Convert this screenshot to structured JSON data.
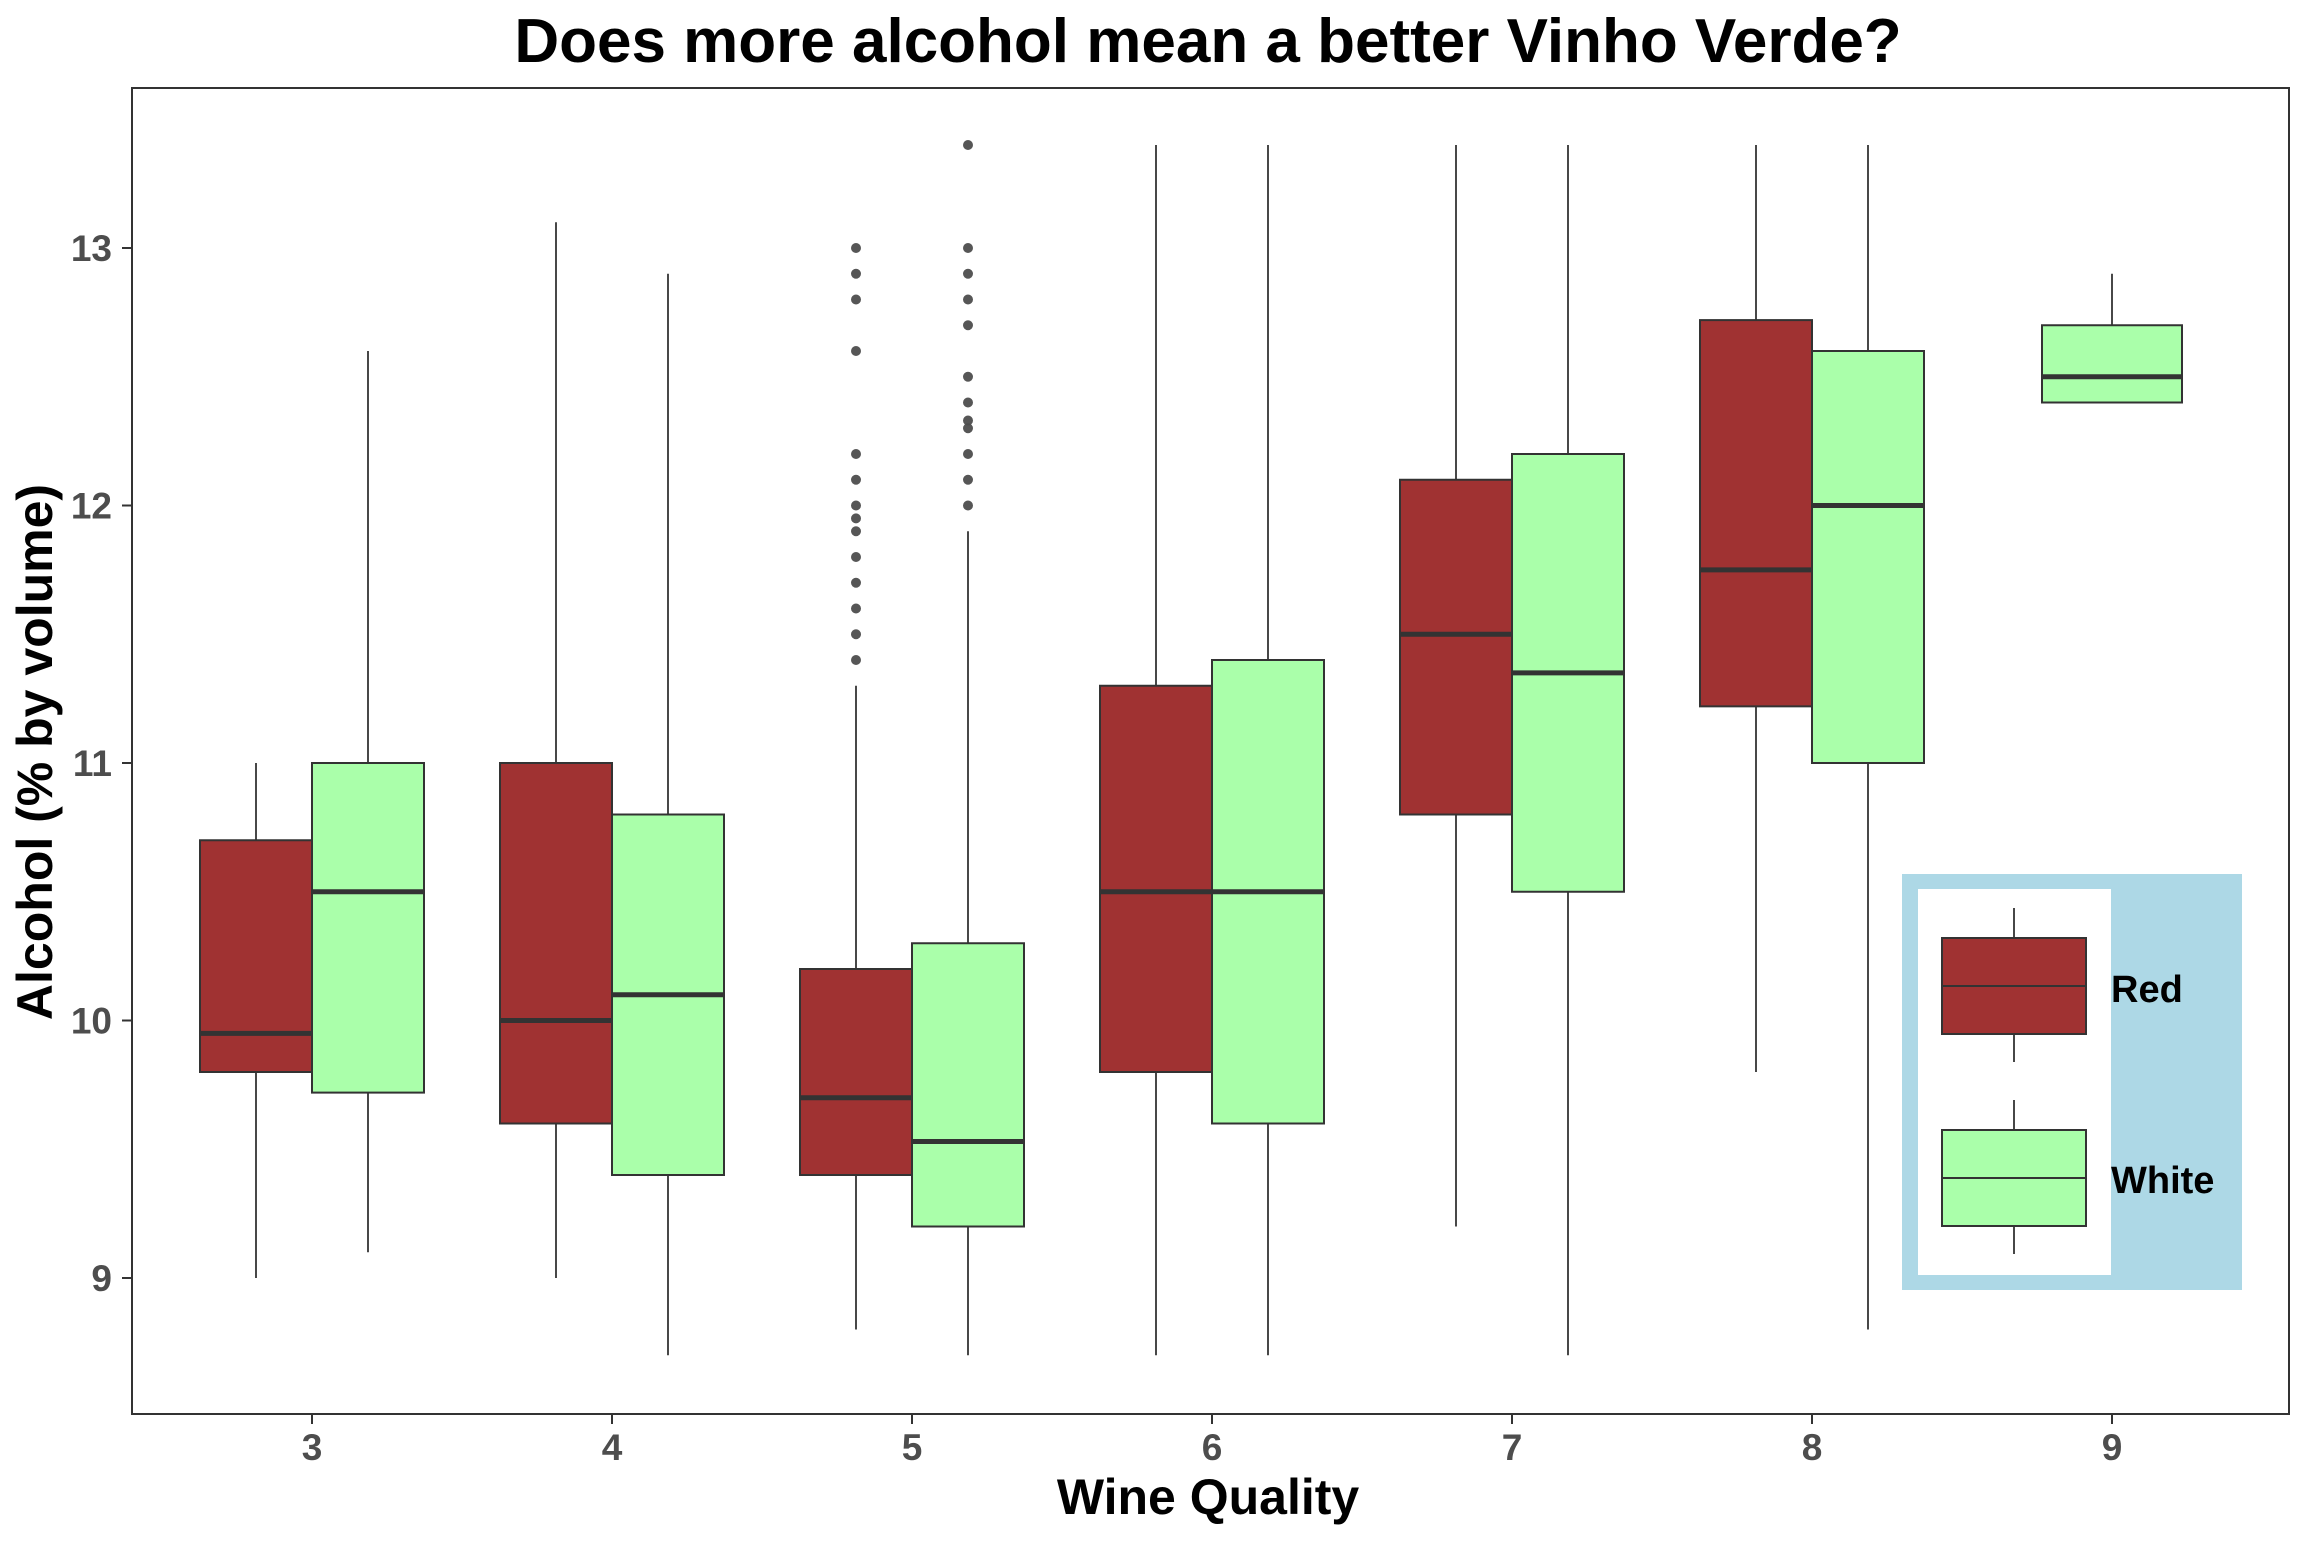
{
  "chart_data": {
    "type": "boxplot",
    "title": "Does more alcohol mean a better Vinho Verde?",
    "xlabel": "Wine Quality",
    "ylabel": "Alcohol (% by volume)",
    "categories": [
      "3",
      "4",
      "5",
      "6",
      "7",
      "8",
      "9"
    ],
    "y_ticks": [
      9,
      10,
      11,
      12,
      13
    ],
    "ylim": [
      8.47,
      13.6
    ],
    "grid": false,
    "legend_position": "bottom-right",
    "legend_background": "#add8e6",
    "series": [
      {
        "name": "Red",
        "color": "#a03232",
        "boxes": [
          {
            "category": "3",
            "min": 9.0,
            "q1": 9.8,
            "median": 9.95,
            "q3": 10.7,
            "max": 11.0,
            "outliers": []
          },
          {
            "category": "4",
            "min": 9.0,
            "q1": 9.6,
            "median": 10.0,
            "q3": 11.0,
            "max": 13.1,
            "outliers": []
          },
          {
            "category": "5",
            "min": 8.8,
            "q1": 9.4,
            "median": 9.7,
            "q3": 10.2,
            "max": 11.3,
            "outliers": [
              11.4,
              11.5,
              11.6,
              11.7,
              11.8,
              11.9,
              11.95,
              12.0,
              12.1,
              12.2,
              12.6,
              12.8,
              12.9,
              13.0
            ]
          },
          {
            "category": "6",
            "min": 8.7,
            "q1": 9.8,
            "median": 10.5,
            "q3": 11.3,
            "max": 13.4,
            "outliers": []
          },
          {
            "category": "7",
            "min": 9.2,
            "q1": 10.8,
            "median": 11.5,
            "q3": 12.1,
            "max": 13.4,
            "outliers": []
          },
          {
            "category": "8",
            "min": 9.8,
            "q1": 11.22,
            "median": 11.75,
            "q3": 12.72,
            "max": 13.4,
            "outliers": []
          }
        ]
      },
      {
        "name": "White",
        "color": "#aaffaa",
        "boxes": [
          {
            "category": "3",
            "min": 9.1,
            "q1": 9.72,
            "median": 10.5,
            "q3": 11.0,
            "max": 12.6,
            "outliers": []
          },
          {
            "category": "4",
            "min": 8.7,
            "q1": 9.4,
            "median": 10.1,
            "q3": 10.8,
            "max": 12.9,
            "outliers": []
          },
          {
            "category": "5",
            "min": 8.7,
            "q1": 9.2,
            "median": 9.53,
            "q3": 10.3,
            "max": 11.9,
            "outliers": [
              12.0,
              12.1,
              12.2,
              12.3,
              12.33,
              12.4,
              12.5,
              12.7,
              12.8,
              12.9,
              13.0,
              13.4
            ]
          },
          {
            "category": "6",
            "min": 8.7,
            "q1": 9.6,
            "median": 10.5,
            "q3": 11.4,
            "max": 13.4,
            "outliers": []
          },
          {
            "category": "7",
            "min": 8.7,
            "q1": 10.5,
            "median": 11.35,
            "q3": 12.2,
            "max": 13.4,
            "outliers": []
          },
          {
            "category": "8",
            "min": 8.8,
            "q1": 11.0,
            "median": 12.0,
            "q3": 12.6,
            "max": 13.4,
            "outliers": []
          },
          {
            "category": "9",
            "min": 12.4,
            "q1": 12.4,
            "median": 12.5,
            "q3": 12.7,
            "max": 12.9,
            "outliers": []
          }
        ]
      }
    ]
  }
}
